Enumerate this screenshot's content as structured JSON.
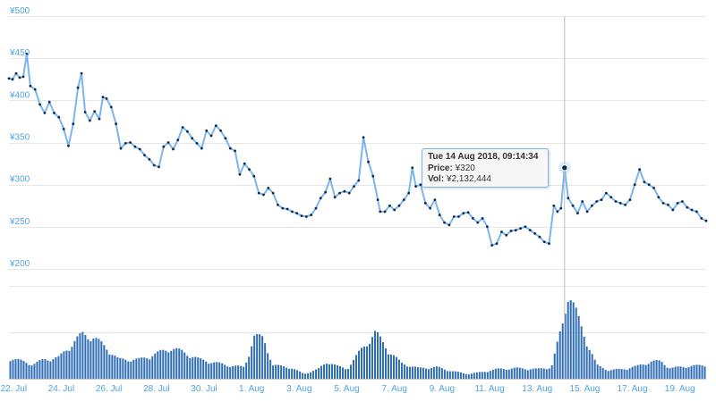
{
  "chart_data": {
    "type": "line",
    "currency_prefix": "¥",
    "y_ticks": [
      {
        "value": 500,
        "label": "¥500"
      },
      {
        "value": 450,
        "label": "¥450"
      },
      {
        "value": 400,
        "label": "¥400"
      },
      {
        "value": 350,
        "label": "¥350"
      },
      {
        "value": 300,
        "label": "¥300"
      },
      {
        "value": 250,
        "label": "¥250"
      },
      {
        "value": 200,
        "label": "¥200"
      }
    ],
    "ylim": [
      200,
      500
    ],
    "x_ticks": [
      "22. Jul",
      "24. Jul",
      "26. Jul",
      "28. Jul",
      "30. Jul",
      "1. Aug",
      "3. Aug",
      "5. Aug",
      "7. Aug",
      "9. Aug",
      "11. Aug",
      "13. Aug",
      "15. Aug",
      "17. Aug",
      "19. Aug"
    ],
    "xlim_days": [
      0,
      29.3
    ],
    "grid": true,
    "series": [
      {
        "type": "line",
        "color": "#7cb5ec",
        "marker_color": "#0d2a4d",
        "points": [
          [
            0.0,
            426
          ],
          [
            0.15,
            425
          ],
          [
            0.3,
            432
          ],
          [
            0.45,
            427
          ],
          [
            0.6,
            428
          ],
          [
            0.75,
            455
          ],
          [
            0.9,
            417
          ],
          [
            1.1,
            413
          ],
          [
            1.3,
            395
          ],
          [
            1.5,
            385
          ],
          [
            1.7,
            398
          ],
          [
            1.9,
            385
          ],
          [
            2.1,
            380
          ],
          [
            2.3,
            366
          ],
          [
            2.5,
            346
          ],
          [
            2.7,
            372
          ],
          [
            2.9,
            415
          ],
          [
            3.05,
            432
          ],
          [
            3.2,
            386
          ],
          [
            3.4,
            376
          ],
          [
            3.6,
            387
          ],
          [
            3.8,
            378
          ],
          [
            3.95,
            404
          ],
          [
            4.1,
            402
          ],
          [
            4.3,
            392
          ],
          [
            4.5,
            372
          ],
          [
            4.7,
            343
          ],
          [
            4.9,
            349
          ],
          [
            5.1,
            350
          ],
          [
            5.3,
            345
          ],
          [
            5.5,
            342
          ],
          [
            5.7,
            335
          ],
          [
            5.9,
            330
          ],
          [
            6.1,
            323
          ],
          [
            6.3,
            321
          ],
          [
            6.5,
            345
          ],
          [
            6.7,
            350
          ],
          [
            6.9,
            342
          ],
          [
            7.1,
            353
          ],
          [
            7.3,
            368
          ],
          [
            7.5,
            363
          ],
          [
            7.7,
            355
          ],
          [
            7.9,
            349
          ],
          [
            8.1,
            343
          ],
          [
            8.3,
            364
          ],
          [
            8.5,
            358
          ],
          [
            8.7,
            370
          ],
          [
            8.9,
            364
          ],
          [
            9.1,
            355
          ],
          [
            9.3,
            343
          ],
          [
            9.5,
            340
          ],
          [
            9.7,
            312
          ],
          [
            9.9,
            325
          ],
          [
            10.1,
            318
          ],
          [
            10.3,
            310
          ],
          [
            10.5,
            290
          ],
          [
            10.7,
            288
          ],
          [
            10.9,
            296
          ],
          [
            11.1,
            290
          ],
          [
            11.3,
            276
          ],
          [
            11.5,
            272
          ],
          [
            11.7,
            271
          ],
          [
            11.9,
            268
          ],
          [
            12.1,
            266
          ],
          [
            12.3,
            263
          ],
          [
            12.5,
            262
          ],
          [
            12.7,
            264
          ],
          [
            12.9,
            272
          ],
          [
            13.1,
            284
          ],
          [
            13.3,
            291
          ],
          [
            13.5,
            307
          ],
          [
            13.7,
            285
          ],
          [
            13.9,
            290
          ],
          [
            14.1,
            292
          ],
          [
            14.3,
            290
          ],
          [
            14.5,
            298
          ],
          [
            14.7,
            305
          ],
          [
            14.9,
            356
          ],
          [
            15.1,
            327
          ],
          [
            15.3,
            310
          ],
          [
            15.5,
            282
          ],
          [
            15.6,
            268
          ],
          [
            15.8,
            268
          ],
          [
            16.0,
            275
          ],
          [
            16.2,
            270
          ],
          [
            16.4,
            275
          ],
          [
            16.6,
            282
          ],
          [
            16.8,
            290
          ],
          [
            16.95,
            320
          ],
          [
            17.1,
            298
          ],
          [
            17.3,
            300
          ],
          [
            17.5,
            278
          ],
          [
            17.7,
            272
          ],
          [
            17.9,
            282
          ],
          [
            18.1,
            264
          ],
          [
            18.3,
            255
          ],
          [
            18.5,
            252
          ],
          [
            18.7,
            262
          ],
          [
            18.9,
            262
          ],
          [
            19.1,
            266
          ],
          [
            19.3,
            267
          ],
          [
            19.5,
            260
          ],
          [
            19.7,
            255
          ],
          [
            19.9,
            260
          ],
          [
            20.1,
            250
          ],
          [
            20.3,
            228
          ],
          [
            20.5,
            230
          ],
          [
            20.7,
            244
          ],
          [
            20.9,
            240
          ],
          [
            21.1,
            245
          ],
          [
            21.3,
            246
          ],
          [
            21.5,
            248
          ],
          [
            21.7,
            250
          ],
          [
            21.9,
            246
          ],
          [
            22.1,
            242
          ],
          [
            22.3,
            238
          ],
          [
            22.5,
            232
          ],
          [
            22.7,
            230
          ],
          [
            22.9,
            275
          ],
          [
            23.05,
            268
          ],
          [
            23.2,
            272
          ],
          [
            23.35,
            320
          ],
          [
            23.5,
            284
          ],
          [
            23.7,
            275
          ],
          [
            23.9,
            266
          ],
          [
            24.1,
            280
          ],
          [
            24.3,
            268
          ],
          [
            24.5,
            275
          ],
          [
            24.7,
            280
          ],
          [
            24.9,
            282
          ],
          [
            25.1,
            290
          ],
          [
            25.3,
            285
          ],
          [
            25.5,
            280
          ],
          [
            25.7,
            278
          ],
          [
            25.9,
            276
          ],
          [
            26.1,
            282
          ],
          [
            26.3,
            300
          ],
          [
            26.5,
            318
          ],
          [
            26.7,
            303
          ],
          [
            26.9,
            300
          ],
          [
            27.1,
            296
          ],
          [
            27.3,
            285
          ],
          [
            27.5,
            278
          ],
          [
            27.7,
            276
          ],
          [
            27.9,
            270
          ],
          [
            28.1,
            278
          ],
          [
            28.3,
            280
          ],
          [
            28.5,
            273
          ],
          [
            28.7,
            270
          ],
          [
            28.9,
            268
          ],
          [
            29.1,
            260
          ],
          [
            29.3,
            257
          ]
        ]
      },
      {
        "type": "bar",
        "name": "volume",
        "color": "#2f6db5",
        "points": [
          [
            0.0,
            0.22
          ],
          [
            1.0,
            0.15
          ],
          [
            1.5,
            0.2
          ],
          [
            2.1,
            0.22
          ],
          [
            2.8,
            0.4
          ],
          [
            3.1,
            0.46
          ],
          [
            3.5,
            0.44
          ],
          [
            4.2,
            0.3
          ],
          [
            4.6,
            0.2
          ],
          [
            5.5,
            0.2
          ],
          [
            6.2,
            0.26
          ],
          [
            6.8,
            0.32
          ],
          [
            7.3,
            0.28
          ],
          [
            8.0,
            0.2
          ],
          [
            9.2,
            0.14
          ],
          [
            9.9,
            0.12
          ],
          [
            10.3,
            0.44
          ],
          [
            10.7,
            0.42
          ],
          [
            11.1,
            0.14
          ],
          [
            11.8,
            0.12
          ],
          [
            12.4,
            0.05
          ],
          [
            13.0,
            0.1
          ],
          [
            13.4,
            0.18
          ],
          [
            13.8,
            0.13
          ],
          [
            14.2,
            0.1
          ],
          [
            14.8,
            0.3
          ],
          [
            15.4,
            0.48
          ],
          [
            16.0,
            0.28
          ],
          [
            16.5,
            0.16
          ],
          [
            17.2,
            0.11
          ],
          [
            18.0,
            0.12
          ],
          [
            18.6,
            0.08
          ],
          [
            19.3,
            0.05
          ],
          [
            19.9,
            0.07
          ],
          [
            20.5,
            0.1
          ],
          [
            21.3,
            0.11
          ],
          [
            22.2,
            0.1
          ],
          [
            22.8,
            0.12
          ],
          [
            23.3,
            0.6
          ],
          [
            23.5,
            0.92
          ],
          [
            24.1,
            0.5
          ],
          [
            24.7,
            0.14
          ],
          [
            25.2,
            0.09
          ],
          [
            25.8,
            0.1
          ],
          [
            26.4,
            0.13
          ],
          [
            27.0,
            0.18
          ],
          [
            27.4,
            0.18
          ],
          [
            27.8,
            0.11
          ],
          [
            28.5,
            0.13
          ],
          [
            29.3,
            0.14
          ]
        ]
      }
    ],
    "crosshair_day": 23.35
  },
  "tooltip": {
    "date": "Tue 14 Aug 2018, 09:14:34",
    "price_label": "Price:",
    "price_value": "¥320",
    "vol_label": "Vol:",
    "vol_value": "¥2,132,444"
  }
}
